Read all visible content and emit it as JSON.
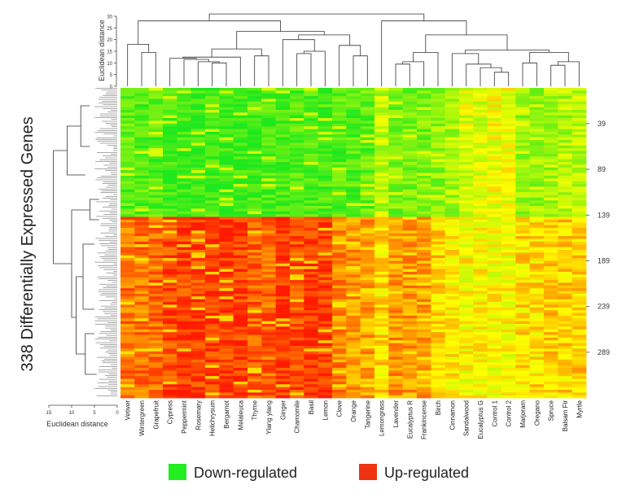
{
  "chart_data": {
    "type": "heatmap",
    "title": "",
    "ylabel": "338 Differentially Expressed Genes",
    "columns": [
      "Vetiver",
      "Wintergreen",
      "Grapefruit",
      "Cypress",
      "Peppermint",
      "Rosemary",
      "Helichrysum",
      "Bergamot",
      "Melaleuca",
      "Thyme",
      "Ylang ylang",
      "Ginger",
      "Chamomile",
      "Basil",
      "Lemon",
      "Clove",
      "Orange",
      "Tangerine",
      "Lemongrass",
      "Lavender",
      "Eucalyptus R",
      "Frankincense",
      "Birch",
      "Cinnamon",
      "Sandalwood",
      "Eucalyptus G",
      "Control 1",
      "Control 2",
      "Marjoram",
      "Oregano",
      "Spruce",
      "Balsam Fir",
      "Myrtle"
    ],
    "row_ticks": [
      "39",
      "89",
      "139",
      "189",
      "239",
      "289"
    ],
    "row_count": 338,
    "down_block_rows": 140,
    "column_profiles": [
      {
        "down": -0.7,
        "up": 0.6
      },
      {
        "down": -0.75,
        "up": 0.6
      },
      {
        "down": -0.75,
        "up": 0.62
      },
      {
        "down": -0.85,
        "up": 0.8
      },
      {
        "down": -0.9,
        "up": 0.85
      },
      {
        "down": -0.9,
        "up": 0.85
      },
      {
        "down": -0.88,
        "up": 0.85
      },
      {
        "down": -0.9,
        "up": 0.88
      },
      {
        "down": -0.9,
        "up": 0.88
      },
      {
        "down": -0.85,
        "up": 0.7
      },
      {
        "down": -0.82,
        "up": 0.65
      },
      {
        "down": -0.85,
        "up": 0.92
      },
      {
        "down": -0.8,
        "up": 0.8
      },
      {
        "down": -0.82,
        "up": 0.92
      },
      {
        "down": -0.8,
        "up": 0.85
      },
      {
        "down": -0.75,
        "up": 0.5
      },
      {
        "down": -0.75,
        "up": 0.45
      },
      {
        "down": -0.7,
        "up": 0.4
      },
      {
        "down": -0.3,
        "up": 0.15
      },
      {
        "down": -0.6,
        "up": 0.45
      },
      {
        "down": -0.6,
        "up": 0.45
      },
      {
        "down": -0.6,
        "up": 0.4
      },
      {
        "down": -0.5,
        "up": 0.2
      },
      {
        "down": -0.4,
        "up": 0.05
      },
      {
        "down": -0.15,
        "up": 0.0
      },
      {
        "down": -0.15,
        "up": 0.0
      },
      {
        "down": -0.05,
        "up": 0.0
      },
      {
        "down": -0.05,
        "up": 0.0
      },
      {
        "down": -0.45,
        "up": 0.15
      },
      {
        "down": -0.45,
        "up": 0.15
      },
      {
        "down": -0.4,
        "up": 0.2
      },
      {
        "down": -0.4,
        "up": 0.2
      },
      {
        "down": -0.35,
        "up": 0.2
      }
    ],
    "top_dendrogram": {
      "axis_title": "Euclidean distance",
      "ticks": [
        0,
        5,
        10,
        15,
        20,
        25,
        30
      ],
      "range": [
        0,
        30
      ]
    },
    "left_dendrogram": {
      "axis_title": "Euclidean distance",
      "ticks": [
        15,
        10,
        5,
        0
      ],
      "range": [
        0,
        15
      ]
    },
    "legend": [
      {
        "label": "Down-regulated",
        "color": "#22ee22"
      },
      {
        "label": "Up-regulated",
        "color": "#ee3311"
      }
    ],
    "colors": {
      "low": "#1ee81e",
      "mid": "#ffff00",
      "high": "#ff1a00"
    }
  }
}
